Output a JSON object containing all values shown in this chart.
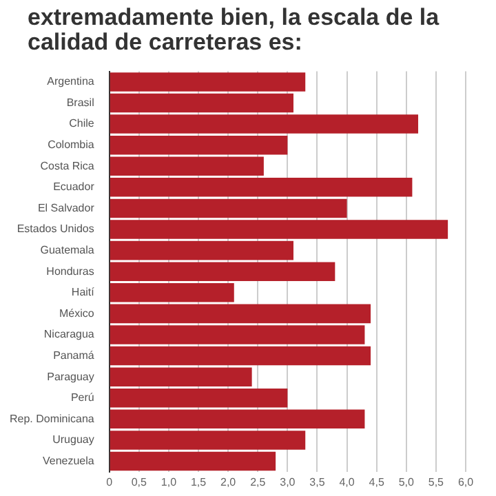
{
  "chart_data": {
    "type": "bar",
    "orientation": "horizontal",
    "title": "extremadamente bien, la escala de la calidad de carreteras es:",
    "categories": [
      "Argentina",
      "Brasil",
      "Chile",
      "Colombia",
      "Costa Rica",
      "Ecuador",
      "El Salvador",
      "Estados Unidos",
      "Guatemala",
      "Honduras",
      "Haití",
      "México",
      "Nicaragua",
      "Panamá",
      "Paraguay",
      "Perú",
      "Rep. Dominicana",
      "Uruguay",
      "Venezuela"
    ],
    "values": [
      3.3,
      3.1,
      5.2,
      3.0,
      2.6,
      5.1,
      4.0,
      5.7,
      3.1,
      3.8,
      2.1,
      4.4,
      4.3,
      4.4,
      2.4,
      3.0,
      4.3,
      3.3,
      2.8
    ],
    "color": "#b5202a",
    "xlim": [
      0,
      6.0
    ],
    "xticks": [
      0,
      {
        "value": 0.5,
        "label": "0,5"
      },
      {
        "value": 1,
        "label": "1,0"
      },
      {
        "value": 1.5,
        "label": "1,5"
      },
      {
        "value": 2,
        "label": "2,0"
      },
      {
        "value": 2.5,
        "label": "2,5"
      },
      {
        "value": 3,
        "label": "3,0"
      },
      {
        "value": 3.5,
        "label": "3,5"
      },
      {
        "value": 4,
        "label": "4,0"
      },
      {
        "value": 4.5,
        "label": "4,5"
      },
      {
        "value": 5,
        "label": "5,0"
      },
      {
        "value": 5.5,
        "label": "5,5"
      },
      {
        "value": 6,
        "label": "6,0"
      }
    ],
    "grid": "x"
  }
}
